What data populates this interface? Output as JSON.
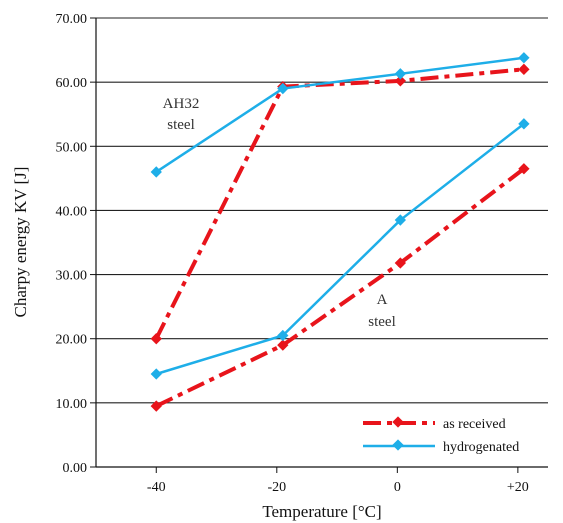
{
  "chart_data": {
    "type": "line",
    "title": "",
    "xlabel": "Temperature [°C]",
    "ylabel": "Charpy energy KV [J]",
    "xlim": [
      -50,
      25
    ],
    "ylim": [
      0,
      70
    ],
    "xticks": [
      -40,
      -20,
      0,
      20
    ],
    "xtick_labels": [
      "-40",
      "-20",
      "0",
      "+20"
    ],
    "yticks": [
      0,
      10,
      20,
      30,
      40,
      50,
      60,
      70
    ],
    "ytick_labels": [
      "0.00",
      "10.00",
      "20.00",
      "30.00",
      "40.00",
      "50.00",
      "60.00",
      "70.00"
    ],
    "grid": "horizontal",
    "legend_position": "bottom-right",
    "series": [
      {
        "name": "as received",
        "group": "AH32 steel",
        "style": "dashdot",
        "color": "#e8141b",
        "x": [
          -40,
          -19,
          0.5,
          21
        ],
        "y": [
          20.0,
          59.3,
          60.2,
          62.0
        ]
      },
      {
        "name": "hydrogenated",
        "group": "AH32 steel",
        "style": "solid",
        "color": "#1eaee8",
        "x": [
          -40,
          -19,
          0.5,
          21
        ],
        "y": [
          46.0,
          59.0,
          61.3,
          63.8
        ]
      },
      {
        "name": "as received",
        "group": "A steel",
        "style": "dashdot",
        "color": "#e8141b",
        "x": [
          -40,
          -19,
          0.5,
          21
        ],
        "y": [
          9.5,
          19.0,
          31.8,
          46.5
        ]
      },
      {
        "name": "hydrogenated",
        "group": "A steel",
        "style": "solid",
        "color": "#1eaee8",
        "x": [
          -40,
          -19,
          0.5,
          21
        ],
        "y": [
          14.5,
          20.5,
          38.5,
          53.5
        ]
      }
    ],
    "annotations": [
      {
        "text": [
          "AH32",
          "steel"
        ]
      },
      {
        "text": [
          "A",
          "steel"
        ]
      }
    ],
    "legend": [
      {
        "label": "as received",
        "style": "dashdot",
        "color": "#e8141b"
      },
      {
        "label": "hydrogenated",
        "style": "solid",
        "color": "#1eaee8"
      }
    ]
  }
}
